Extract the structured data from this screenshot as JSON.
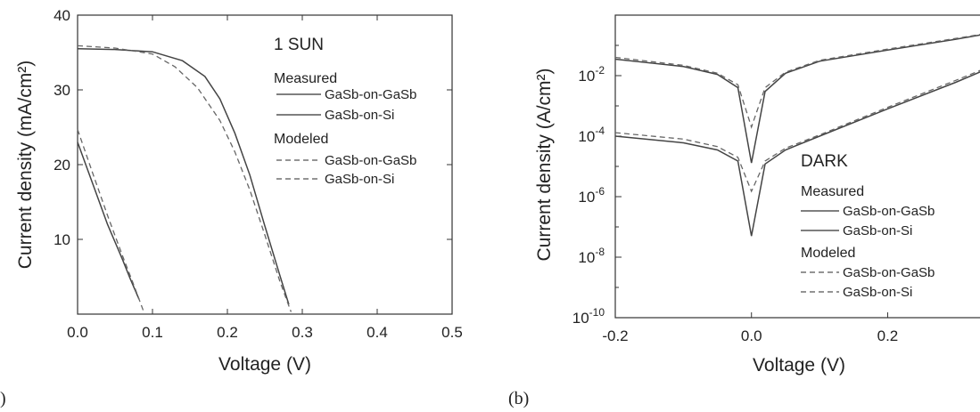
{
  "panel_labels": [
    ")",
    "(b)"
  ],
  "chart_data": [
    {
      "type": "line",
      "xlabel": "Voltage (V)",
      "ylabel": "Current density (mA/cm²)",
      "xlim": [
        0.0,
        0.5
      ],
      "ylim": [
        0,
        40
      ],
      "x_ticks": [
        0.0,
        0.1,
        0.2,
        0.3,
        0.4,
        0.5
      ],
      "x_tick_labels": [
        "0.0",
        "0.1",
        "0.2",
        "0.3",
        "0.4",
        "0.5"
      ],
      "y_ticks": [
        10,
        20,
        30,
        40
      ],
      "y_tick_labels": [
        "10",
        "20",
        "30",
        "40"
      ],
      "condition": "1 SUN",
      "legend_position": "right",
      "legend": {
        "measured_heading": "Measured",
        "modeled_heading": "Modeled",
        "entries": [
          {
            "label": "GaSb-on-GaSb",
            "group": "Measured",
            "style": "solid"
          },
          {
            "label": "GaSb-on-Si",
            "group": "Measured",
            "style": "solid"
          },
          {
            "label": "GaSb-on-GaSb",
            "group": "Modeled",
            "style": "dashed"
          },
          {
            "label": "GaSb-on-Si",
            "group": "Modeled",
            "style": "dashed"
          }
        ]
      },
      "series": [
        {
          "group": "Measured",
          "device": "GaSb-on-GaSb",
          "style": "solid",
          "x": [
            0.0,
            0.05,
            0.1,
            0.14,
            0.17,
            0.19,
            0.21,
            0.23,
            0.25,
            0.27,
            0.282
          ],
          "y": [
            35.5,
            35.4,
            35.1,
            33.9,
            31.8,
            28.8,
            24.2,
            18.6,
            11.8,
            5.2,
            1.3
          ]
        },
        {
          "group": "Measured",
          "device": "GaSb-on-Si",
          "style": "solid",
          "x": [
            0.0,
            0.02,
            0.04,
            0.06,
            0.07,
            0.082
          ],
          "y": [
            23.0,
            17.5,
            12.0,
            7.3,
            4.8,
            2.0
          ]
        },
        {
          "group": "Modeled",
          "device": "GaSb-on-GaSb",
          "style": "dashed",
          "x": [
            0.0,
            0.05,
            0.1,
            0.13,
            0.16,
            0.19,
            0.21,
            0.23,
            0.25,
            0.27,
            0.285
          ],
          "y": [
            35.9,
            35.6,
            34.8,
            33.1,
            30.3,
            25.9,
            21.7,
            16.6,
            10.6,
            4.4,
            0.3
          ]
        },
        {
          "group": "Modeled",
          "device": "GaSb-on-Si",
          "style": "dashed",
          "x": [
            0.0,
            0.02,
            0.04,
            0.06,
            0.075,
            0.088
          ],
          "y": [
            24.7,
            18.9,
            13.2,
            7.8,
            3.9,
            0.4
          ]
        }
      ]
    },
    {
      "type": "line",
      "xlabel": "Voltage (V)",
      "ylabel": "Current density (A/cm²)",
      "y_scale": "log",
      "xlim": [
        -0.2,
        0.35
      ],
      "ylim": [
        1e-10,
        1
      ],
      "x_ticks": [
        -0.2,
        0.0,
        0.2
      ],
      "x_tick_labels": [
        "-0.2",
        "0.0",
        "0.2"
      ],
      "y_ticks": [
        -10,
        -8,
        -6,
        -4,
        -2
      ],
      "y_tick_labels": [
        "10-10",
        "10-8",
        "10-6",
        "10-4",
        "10-2"
      ],
      "y_tick_base": "10",
      "y_tick_exponents": [
        "-10",
        "-8",
        "-6",
        "-4",
        "-2"
      ],
      "condition": "DARK",
      "legend_position": "lower right",
      "legend": {
        "measured_heading": "Measured",
        "modeled_heading": "Modeled",
        "entries": [
          {
            "label": "GaSb-on-GaSb",
            "group": "Measured",
            "style": "solid"
          },
          {
            "label": "GaSb-on-Si",
            "group": "Measured",
            "style": "solid"
          },
          {
            "label": "GaSb-on-GaSb",
            "group": "Modeled",
            "style": "dashed"
          },
          {
            "label": "GaSb-on-Si",
            "group": "Modeled",
            "style": "dashed"
          }
        ]
      },
      "series": [
        {
          "group": "Measured",
          "device": "GaSb-on-GaSb",
          "style": "solid",
          "x": [
            -0.2,
            -0.1,
            -0.05,
            -0.02,
            0.0,
            0.02,
            0.05,
            0.1,
            0.2,
            0.3,
            0.35
          ],
          "y": [
            0.035,
            0.02,
            0.011,
            0.004,
            1.3e-05,
            0.003,
            0.012,
            0.03,
            0.07,
            0.16,
            0.25
          ]
        },
        {
          "group": "Measured",
          "device": "GaSb-on-Si",
          "style": "solid",
          "x": [
            -0.2,
            -0.1,
            -0.05,
            -0.02,
            0.0,
            0.02,
            0.05,
            0.1,
            0.2,
            0.3,
            0.35
          ],
          "y": [
            0.0001,
            6e-05,
            3.5e-05,
            1.5e-05,
            5e-08,
            1.2e-05,
            3.5e-05,
            0.0001,
            0.0008,
            0.006,
            0.018
          ]
        },
        {
          "group": "Modeled",
          "device": "GaSb-on-GaSb",
          "style": "dashed",
          "x": [
            -0.2,
            -0.1,
            -0.05,
            -0.02,
            0.0,
            0.02,
            0.05,
            0.1,
            0.2,
            0.3,
            0.35
          ],
          "y": [
            0.04,
            0.022,
            0.012,
            0.005,
            0.0002,
            0.004,
            0.013,
            0.032,
            0.075,
            0.17,
            0.26
          ]
        },
        {
          "group": "Modeled",
          "device": "GaSb-on-Si",
          "style": "dashed",
          "x": [
            -0.2,
            -0.1,
            -0.05,
            -0.02,
            0.0,
            0.02,
            0.05,
            0.1,
            0.2,
            0.3,
            0.35
          ],
          "y": [
            0.00013,
            8e-05,
            4.5e-05,
            2e-05,
            1.5e-06,
            1.5e-05,
            4e-05,
            0.00011,
            0.0009,
            0.007,
            0.02
          ]
        }
      ]
    }
  ]
}
